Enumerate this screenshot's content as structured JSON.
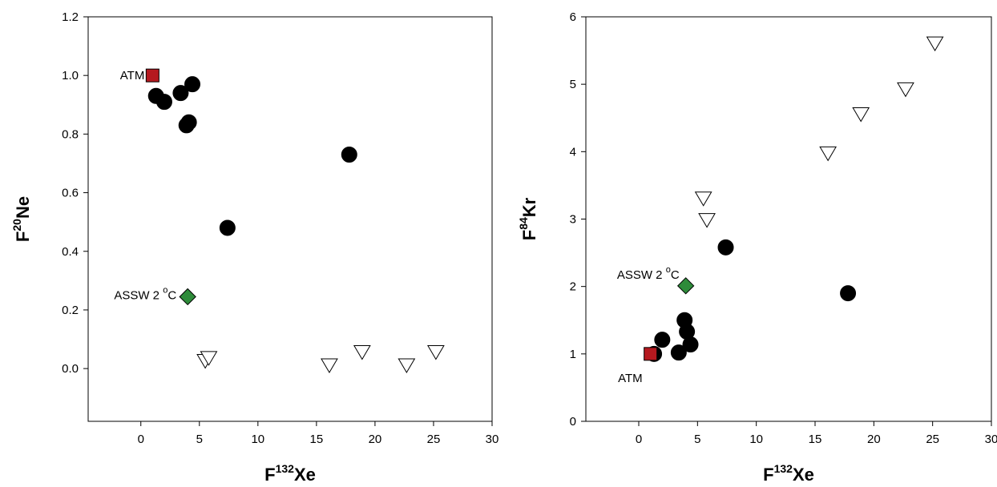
{
  "chart_data": [
    {
      "type": "scatter",
      "title": "",
      "xlabel": {
        "base": "F",
        "sup": "132",
        "rest": "Xe"
      },
      "ylabel": {
        "base": "F",
        "sup": "20",
        "rest": "Ne"
      },
      "xlim": [
        -4.5,
        30
      ],
      "ylim": [
        -0.18,
        1.2
      ],
      "xticks": [
        0,
        5,
        10,
        15,
        20,
        25,
        30
      ],
      "xtick_labels": [
        "0",
        "5",
        "10",
        "15",
        "20",
        "25",
        "30"
      ],
      "yticks": [
        0.0,
        0.2,
        0.4,
        0.6,
        0.8,
        1.0,
        1.2
      ],
      "ytick_labels": [
        "0.0",
        "0.2",
        "0.4",
        "0.6",
        "0.8",
        "1.0",
        "1.2"
      ],
      "grid": false,
      "series": [
        {
          "marker": "circle",
          "color": "#000000",
          "x": [
            1.3,
            2.0,
            3.4,
            4.4,
            3.9,
            4.1,
            7.4,
            17.8
          ],
          "y": [
            0.93,
            0.91,
            0.94,
            0.97,
            0.83,
            0.84,
            0.48,
            0.73
          ]
        },
        {
          "marker": "triangle-down",
          "color": "#ffffff",
          "x": [
            5.5,
            5.8,
            16.1,
            18.9,
            22.7,
            25.2
          ],
          "y": [
            0.025,
            0.035,
            0.01,
            0.055,
            0.01,
            0.055
          ]
        },
        {
          "marker": "square",
          "color": "#b5191f",
          "x": [
            1.0
          ],
          "y": [
            1.0
          ]
        },
        {
          "marker": "diamond",
          "color": "#2e8b3a",
          "x": [
            4.0
          ],
          "y": [
            0.245
          ]
        }
      ],
      "annotations": [
        {
          "text": "ATM",
          "x": 1.0,
          "y": 1.0,
          "anchor": "left"
        },
        {
          "text": "ASSW 2 °C",
          "x": 4.0,
          "y": 0.245,
          "anchor": "left"
        }
      ]
    },
    {
      "type": "scatter",
      "title": "",
      "xlabel": {
        "base": "F",
        "sup": "132",
        "rest": "Xe"
      },
      "ylabel": {
        "base": "F",
        "sup": "84",
        "rest": "Kr"
      },
      "xlim": [
        -4.5,
        30
      ],
      "ylim": [
        0,
        6
      ],
      "xticks": [
        0,
        5,
        10,
        15,
        20,
        25,
        30
      ],
      "xtick_labels": [
        "0",
        "5",
        "10",
        "15",
        "20",
        "25",
        "30"
      ],
      "yticks": [
        0,
        1,
        2,
        3,
        4,
        5,
        6
      ],
      "ytick_labels": [
        "0",
        "1",
        "2",
        "3",
        "4",
        "5",
        "6"
      ],
      "grid": false,
      "series": [
        {
          "marker": "circle",
          "color": "#000000",
          "x": [
            1.3,
            2.0,
            3.4,
            3.9,
            4.1,
            4.4,
            7.4,
            17.8
          ],
          "y": [
            1.0,
            1.21,
            1.02,
            1.5,
            1.33,
            1.14,
            2.58,
            1.9
          ]
        },
        {
          "marker": "triangle-down",
          "color": "#ffffff",
          "x": [
            5.5,
            5.8,
            16.1,
            18.9,
            22.7,
            25.2
          ],
          "y": [
            3.3,
            2.98,
            3.97,
            4.55,
            4.92,
            5.6
          ]
        },
        {
          "marker": "square",
          "color": "#b5191f",
          "x": [
            1.0
          ],
          "y": [
            1.0
          ]
        },
        {
          "marker": "diamond",
          "color": "#2e8b3a",
          "x": [
            4.0
          ],
          "y": [
            2.01
          ]
        }
      ],
      "annotations": [
        {
          "text": "ATM",
          "x": 1.0,
          "y": 1.0,
          "anchor": "below-left"
        },
        {
          "text": "ASSW 2 °C",
          "x": 4.0,
          "y": 2.01,
          "anchor": "above-left"
        }
      ]
    }
  ]
}
